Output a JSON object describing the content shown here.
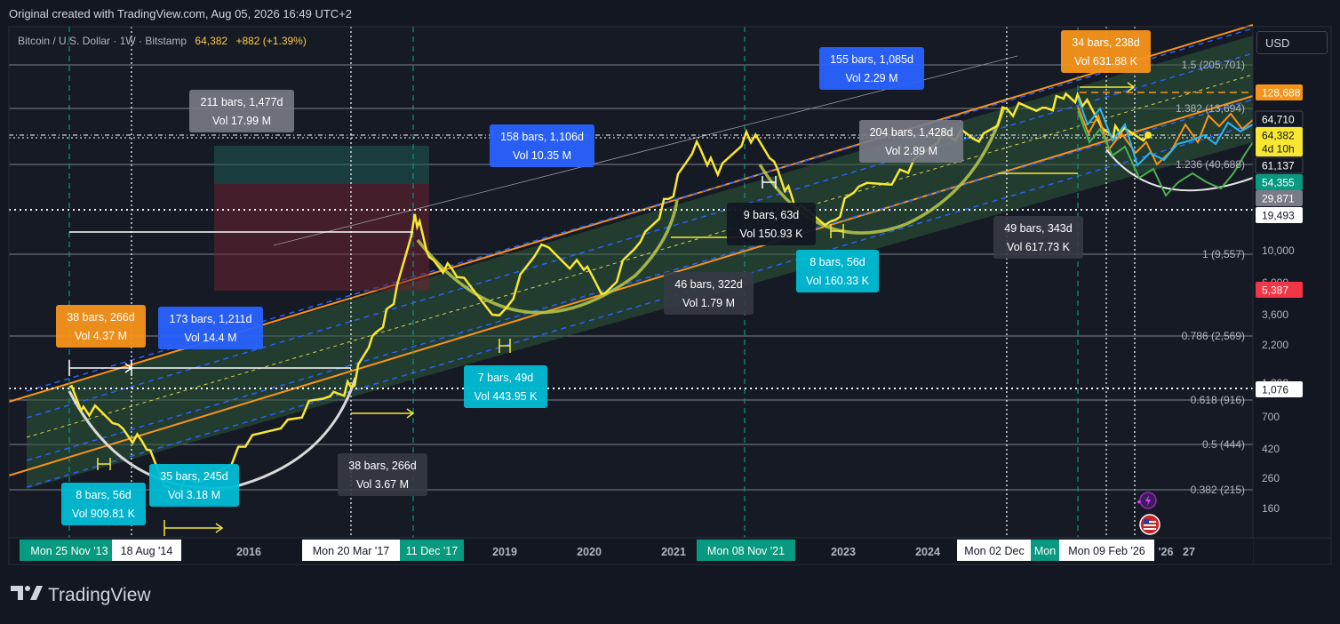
{
  "header": {
    "origin_text": "Original created with TradingView.com, Aug 05, 2026 16:49 UTC+2"
  },
  "symbol": {
    "name": "Bitcoin / U.S. Dollar · 1W · Bitstamp",
    "price": "64,382",
    "change": "+882 (+1.39%)"
  },
  "currency_button": "USD",
  "brand": {
    "name": "TradingView",
    "logo_icon": "tradingview-logo-icon"
  },
  "colors": {
    "background": "#131722",
    "price_line": "#f7e733",
    "channel_orange": "#f7931a",
    "channel_blue": "#2962ff",
    "teal": "#089981",
    "fib_line": "#ffffff"
  },
  "chart_data": {
    "type": "line",
    "title": "Bitcoin / U.S. Dollar · 1W · Bitstamp",
    "y_scale": "log",
    "price_axis_ticks": [
      "10,000",
      "6,000",
      "3,600",
      "2,200",
      "1,300",
      "700",
      "420",
      "260",
      "160"
    ],
    "time_axis_ticks": [
      "2016",
      "2019",
      "2020",
      "2021",
      "2023",
      "2024",
      "'26",
      "27"
    ],
    "time_axis_badges": [
      "Mon 25 Nov '13",
      "18 Aug '14",
      "Mon 20 Mar '17",
      "11 Dec '17",
      "Mon 08 Nov '21",
      "Mon 02 Dec",
      "Mon",
      "Mon 09 Feb '26"
    ],
    "price_badges": [
      {
        "label": "128,688",
        "color": "#f7931a"
      },
      {
        "label": "64,710",
        "color": "#131722"
      },
      {
        "label": "64,382",
        "color": "#f7e733"
      },
      {
        "label": "4d 10h",
        "color": "#f7e733"
      },
      {
        "label": "61,137",
        "color": "#131722"
      },
      {
        "label": "54,355",
        "color": "#089981"
      },
      {
        "label": "29,871",
        "color": "#787b86"
      },
      {
        "label": "19,493",
        "color": "#ffffff"
      },
      {
        "label": "5,387",
        "color": "#f23645"
      },
      {
        "label": "1,076",
        "color": "#ffffff"
      }
    ],
    "fib_levels": [
      {
        "ratio": "1.5",
        "label": "1.5 (205,701)"
      },
      {
        "ratio": "1.382",
        "label": "1.382 (13,694)"
      },
      {
        "ratio": "1.236",
        "label": "1.236 (40,688)"
      },
      {
        "ratio": "1",
        "label": "1 (9,557)"
      },
      {
        "ratio": "0.786",
        "label": "0.786 (2,569)"
      },
      {
        "ratio": "0.618",
        "label": "0.618 (916)"
      },
      {
        "ratio": "0.5",
        "label": "0.5 (444)"
      },
      {
        "ratio": "0.382",
        "label": "0.382 (215)"
      }
    ],
    "annotations": [
      {
        "bars": "211 bars, 1,477d",
        "vol": "Vol 17.99 M",
        "color": "#787b86"
      },
      {
        "bars": "158 bars, 1,106d",
        "vol": "Vol 10.35 M",
        "color": "#2962ff"
      },
      {
        "bars": "155 bars, 1,085d",
        "vol": "Vol 2.29 M",
        "color": "#2962ff"
      },
      {
        "bars": "34 bars, 238d",
        "vol": "Vol 631.88 K",
        "color": "#f7931a"
      },
      {
        "bars": "204 bars, 1,428d",
        "vol": "Vol 2.89 M",
        "color": "#787b86"
      },
      {
        "bars": "9 bars, 63d",
        "vol": "Vol 150.93 K",
        "color": "#131722"
      },
      {
        "bars": "49 bars, 343d",
        "vol": "Vol 617.73 K",
        "color": "#363a45"
      },
      {
        "bars": "8 bars, 56d",
        "vol": "Vol 160.33 K",
        "color": "#00bcd4"
      },
      {
        "bars": "46 bars, 322d",
        "vol": "Vol 1.79 M",
        "color": "#363a45"
      },
      {
        "bars": "7 bars, 49d",
        "vol": "Vol 443.95 K",
        "color": "#00bcd4"
      },
      {
        "bars": "38 bars, 266d",
        "vol": "Vol 4.37 M",
        "color": "#f7931a"
      },
      {
        "bars": "173 bars, 1,211d",
        "vol": "Vol 14.4 M",
        "color": "#2962ff"
      },
      {
        "bars": "38 bars, 266d",
        "vol": "Vol 3.67 M",
        "color": "#363a45"
      },
      {
        "bars": "8 bars, 56d",
        "vol": "Vol 909.81 K",
        "color": "#00bcd4"
      },
      {
        "bars": "35 bars, 245d",
        "vol": "Vol 3.18 M",
        "color": "#00bcd4"
      }
    ],
    "series": [
      {
        "color": "#f7e733",
        "x": [
          "2013-11",
          "2014-01",
          "2014-06",
          "2014-10",
          "2015-01",
          "2015-06",
          "2015-12",
          "2016-06",
          "2016-12",
          "2017-03",
          "2017-06",
          "2017-09",
          "2017-12",
          "2018-02",
          "2018-06",
          "2018-12",
          "2019-06",
          "2019-12",
          "2020-03",
          "2020-08",
          "2020-12",
          "2021-04",
          "2021-07",
          "2021-11",
          "2022-03",
          "2022-06",
          "2022-11",
          "2023-03",
          "2023-10",
          "2024-03",
          "2024-08",
          "2024-12",
          "2025-05",
          "2025-08",
          "2025-10",
          "2026-02",
          "2026-04",
          "2026-08"
        ],
        "y": [
          1100,
          800,
          600,
          400,
          220,
          240,
          420,
          650,
          950,
          1100,
          2500,
          4200,
          18000,
          9000,
          6500,
          3500,
          11000,
          7300,
          5000,
          11500,
          23000,
          58000,
          34000,
          68000,
          42000,
          19500,
          16000,
          28000,
          35000,
          68000,
          58000,
          98000,
          100000,
          116000,
          124000,
          68000,
          66000,
          64382
        ]
      }
    ],
    "grid": false,
    "legend": "none"
  }
}
